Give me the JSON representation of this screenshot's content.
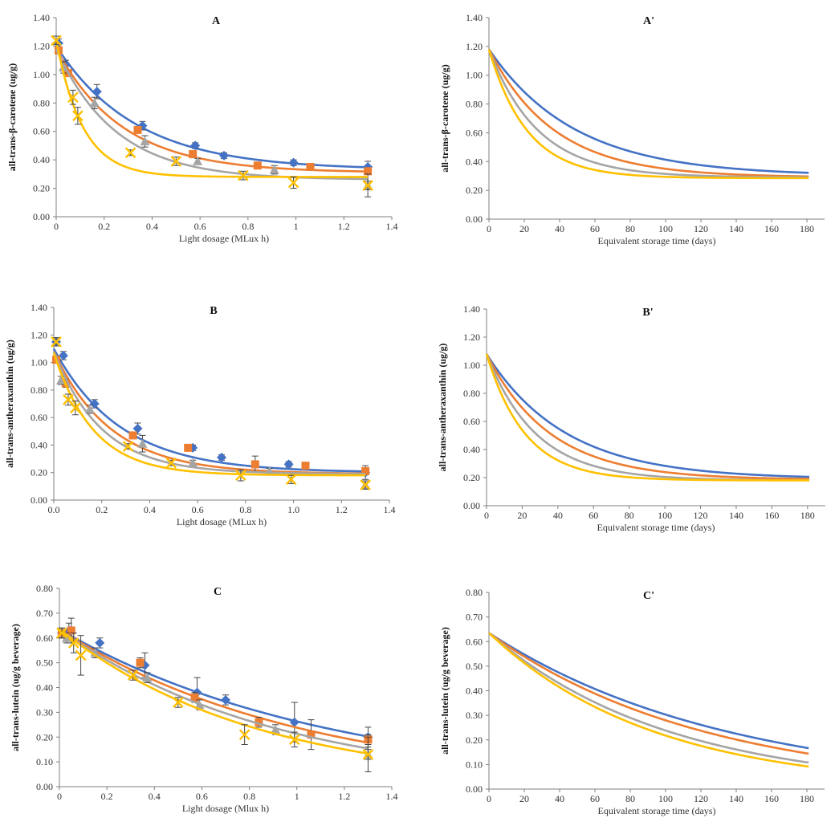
{
  "colors": {
    "blue": "#4472C4",
    "orange": "#ED7D31",
    "gray": "#A5A5A5",
    "yellow": "#FFC000",
    "axis": "#7F7F7F",
    "err": "#444444"
  },
  "chart_data": [
    {
      "id": "A",
      "type": "scatter",
      "title": "A",
      "xlabel": "Light dosage (MLux h)",
      "ylabel": "all-trans-β-carotene (ug/g)",
      "xlim": [
        0,
        1.4
      ],
      "ylim": [
        0,
        1.4
      ],
      "xticks": [
        "0",
        "0.2",
        "0.4",
        "0.6",
        "0.8",
        "1",
        "1.2",
        "1.4"
      ],
      "yticks": [
        "0.00",
        "0.20",
        "0.40",
        "0.60",
        "0.80",
        "1.00",
        "1.20",
        "1.40"
      ],
      "series": [
        {
          "name": "blue",
          "marker": "diamond",
          "x": [
            0.01,
            0.04,
            0.17,
            0.36,
            0.58,
            0.7,
            0.99,
            1.3
          ],
          "y": [
            1.22,
            1.07,
            0.88,
            0.64,
            0.5,
            0.43,
            0.38,
            0.35
          ],
          "err": [
            0.03,
            0.03,
            0.05,
            0.03,
            0.02,
            0.02,
            0.02,
            0.04
          ],
          "fit": {
            "c": 0.33,
            "a": 0.87,
            "k": 3.0
          }
        },
        {
          "name": "orange",
          "marker": "square",
          "x": [
            0.01,
            0.05,
            0.34,
            0.57,
            0.84,
            1.06,
            1.3
          ],
          "y": [
            1.17,
            1.01,
            0.61,
            0.44,
            0.36,
            0.35,
            0.32
          ],
          "err": [
            0.02,
            0.02,
            0.02,
            0.02,
            0.02,
            0.02,
            0.02
          ],
          "fit": {
            "c": 0.31,
            "a": 0.87,
            "k": 3.6
          }
        },
        {
          "name": "gray",
          "marker": "triangle",
          "x": [
            0.03,
            0.16,
            0.37,
            0.59,
            0.91,
            1.3
          ],
          "y": [
            1.05,
            0.8,
            0.53,
            0.39,
            0.33,
            0.22
          ],
          "err": [
            0.04,
            0.04,
            0.04,
            0.02,
            0.03,
            0.08
          ],
          "fit": {
            "c": 0.26,
            "a": 0.92,
            "k": 4.0
          }
        },
        {
          "name": "yellow",
          "marker": "x",
          "x": [
            0.0,
            0.07,
            0.09,
            0.31,
            0.5,
            0.78,
            0.99,
            1.3
          ],
          "y": [
            1.24,
            0.84,
            0.71,
            0.45,
            0.39,
            0.29,
            0.24,
            0.22
          ],
          "err": [
            0.03,
            0.05,
            0.06,
            0.02,
            0.03,
            0.03,
            0.04,
            0.03
          ],
          "fit": {
            "c": 0.28,
            "a": 0.96,
            "k": 9.0
          }
        }
      ]
    },
    {
      "id": "A'",
      "type": "line",
      "title": "A'",
      "xlabel": "Equivalent storage time (days)",
      "ylabel": "all-trans-β-carotene (ug/g)",
      "xlim": [
        0,
        190
      ],
      "ylim": [
        0,
        1.4
      ],
      "xticks": [
        "0",
        "20",
        "40",
        "60",
        "80",
        "100",
        "120",
        "140",
        "160",
        "180"
      ],
      "yticks": [
        "0.00",
        "0.20",
        "0.40",
        "0.60",
        "0.80",
        "1.00",
        "1.20",
        "1.40"
      ],
      "series": [
        {
          "name": "blue",
          "fit": {
            "c": 0.3,
            "a": 0.88,
            "k": 0.0205
          }
        },
        {
          "name": "orange",
          "fit": {
            "c": 0.29,
            "a": 0.89,
            "k": 0.027
          }
        },
        {
          "name": "gray",
          "fit": {
            "c": 0.29,
            "a": 0.89,
            "k": 0.036
          }
        },
        {
          "name": "yellow",
          "fit": {
            "c": 0.285,
            "a": 0.895,
            "k": 0.046
          }
        }
      ]
    },
    {
      "id": "B",
      "type": "scatter",
      "title": "B",
      "xlabel": "Light dosage (MLux h)",
      "ylabel": "all-trans-antheraxanthin (ug/g)",
      "xlim": [
        0,
        1.4
      ],
      "ylim": [
        0,
        1.4
      ],
      "xticks": [
        "0.0",
        "0.2",
        "0.4",
        "0.6",
        "0.8",
        "1.0",
        "1.2",
        "1.4"
      ],
      "yticks": [
        "0.00",
        "0.20",
        "0.40",
        "0.60",
        "0.80",
        "1.00",
        "1.20",
        "1.40"
      ],
      "series": [
        {
          "name": "blue",
          "marker": "diamond",
          "x": [
            0.01,
            0.04,
            0.17,
            0.35,
            0.58,
            0.7,
            0.98,
            1.3
          ],
          "y": [
            1.15,
            1.05,
            0.7,
            0.52,
            0.38,
            0.31,
            0.26,
            0.2
          ],
          "err": [
            0.03,
            0.03,
            0.03,
            0.04,
            0.02,
            0.02,
            0.02,
            0.05
          ],
          "fit": {
            "c": 0.2,
            "a": 0.9,
            "k": 3.6
          }
        },
        {
          "name": "orange",
          "marker": "square",
          "x": [
            0.01,
            0.05,
            0.33,
            0.56,
            0.84,
            1.05,
            1.3
          ],
          "y": [
            1.02,
            0.85,
            0.47,
            0.38,
            0.26,
            0.25,
            0.21
          ],
          "err": [
            0.02,
            0.03,
            0.02,
            0.02,
            0.06,
            0.02,
            0.02
          ],
          "fit": {
            "c": 0.19,
            "a": 0.89,
            "k": 4.2
          }
        },
        {
          "name": "gray",
          "marker": "triangle",
          "x": [
            0.03,
            0.15,
            0.37,
            0.58,
            0.9,
            1.3
          ],
          "y": [
            0.87,
            0.66,
            0.41,
            0.27,
            0.21,
            0.11
          ],
          "err": [
            0.03,
            0.03,
            0.06,
            0.02,
            0.02,
            0.03
          ],
          "fit": {
            "c": 0.19,
            "a": 0.89,
            "k": 5.0
          }
        },
        {
          "name": "yellow",
          "marker": "x",
          "x": [
            0.01,
            0.06,
            0.09,
            0.31,
            0.49,
            0.78,
            0.99,
            1.3
          ],
          "y": [
            1.15,
            0.73,
            0.67,
            0.39,
            0.27,
            0.18,
            0.15,
            0.11
          ],
          "err": [
            0.03,
            0.04,
            0.05,
            0.02,
            0.02,
            0.04,
            0.03,
            0.03
          ],
          "fit": {
            "c": 0.18,
            "a": 0.89,
            "k": 6.0
          }
        }
      ]
    },
    {
      "id": "B'",
      "type": "line",
      "title": "B'",
      "xlabel": "Equivalent storage time (days)",
      "ylabel": "all-trans-antheraxanthin (ug/g)",
      "xlim": [
        0,
        190
      ],
      "ylim": [
        0,
        1.4
      ],
      "xticks": [
        "0",
        "20",
        "40",
        "60",
        "80",
        "100",
        "120",
        "140",
        "160",
        "180"
      ],
      "yticks": [
        "0.00",
        "0.20",
        "0.40",
        "0.60",
        "0.80",
        "1.00",
        "1.20",
        "1.40"
      ],
      "series": [
        {
          "name": "blue",
          "fit": {
            "c": 0.19,
            "a": 0.89,
            "k": 0.0225
          }
        },
        {
          "name": "orange",
          "fit": {
            "c": 0.185,
            "a": 0.895,
            "k": 0.028
          }
        },
        {
          "name": "gray",
          "fit": {
            "c": 0.18,
            "a": 0.9,
            "k": 0.036
          }
        },
        {
          "name": "yellow",
          "fit": {
            "c": 0.18,
            "a": 0.9,
            "k": 0.046
          }
        }
      ]
    },
    {
      "id": "C",
      "type": "scatter",
      "title": "C",
      "xlabel": "Light dosage (Mlux h)",
      "ylabel": "all-trans-lutein (ug/g beverage)",
      "xlim": [
        0,
        1.4
      ],
      "ylim": [
        0,
        0.8
      ],
      "xticks": [
        "0",
        "0.2",
        "0.4",
        "0.6",
        "0.8",
        "1",
        "1.2",
        "1.4"
      ],
      "yticks": [
        "0.00",
        "0.10",
        "0.20",
        "0.30",
        "0.40",
        "0.50",
        "0.60",
        "0.70",
        "0.80"
      ],
      "series": [
        {
          "name": "blue",
          "marker": "diamond",
          "x": [
            0.01,
            0.04,
            0.17,
            0.36,
            0.58,
            0.7,
            0.99,
            1.3
          ],
          "y": [
            0.62,
            0.63,
            0.58,
            0.49,
            0.38,
            0.35,
            0.26,
            0.2
          ],
          "err": [
            0.02,
            0.03,
            0.02,
            0.05,
            0.06,
            0.02,
            0.08,
            0.04
          ],
          "fit": {
            "c": 0.0,
            "a": 0.635,
            "k": 0.88
          }
        },
        {
          "name": "orange",
          "marker": "square",
          "x": [
            0.01,
            0.05,
            0.34,
            0.57,
            0.84,
            1.06,
            1.3
          ],
          "y": [
            0.62,
            0.63,
            0.5,
            0.36,
            0.26,
            0.21,
            0.19
          ],
          "err": [
            0.02,
            0.05,
            0.02,
            0.02,
            0.02,
            0.06,
            0.02
          ],
          "fit": {
            "c": 0.0,
            "a": 0.635,
            "k": 0.98
          }
        },
        {
          "name": "gray",
          "marker": "triangle",
          "x": [
            0.03,
            0.15,
            0.37,
            0.59,
            0.91,
            1.3
          ],
          "y": [
            0.6,
            0.54,
            0.44,
            0.33,
            0.23,
            0.13
          ],
          "err": [
            0.02,
            0.02,
            0.02,
            0.02,
            0.02,
            0.07
          ],
          "fit": {
            "c": 0.0,
            "a": 0.635,
            "k": 1.09
          }
        },
        {
          "name": "yellow",
          "marker": "x",
          "x": [
            0.01,
            0.06,
            0.09,
            0.31,
            0.5,
            0.78,
            0.99,
            1.3
          ],
          "y": [
            0.62,
            0.58,
            0.53,
            0.45,
            0.34,
            0.21,
            0.19,
            0.13
          ],
          "err": [
            0.02,
            0.04,
            0.08,
            0.02,
            0.02,
            0.04,
            0.03,
            0.02
          ],
          "fit": {
            "c": 0.0,
            "a": 0.635,
            "k": 1.2
          }
        }
      ]
    },
    {
      "id": "C'",
      "type": "line",
      "title": "C'",
      "xlabel": "Equivalent storage time (days)",
      "ylabel": "all-trans-lutein (ug/g beverage)",
      "xlim": [
        0,
        190
      ],
      "ylim": [
        0,
        0.8
      ],
      "xticks": [
        "0",
        "20",
        "40",
        "60",
        "80",
        "100",
        "120",
        "140",
        "160",
        "180"
      ],
      "yticks": [
        "0.00",
        "0.10",
        "0.20",
        "0.30",
        "0.40",
        "0.50",
        "0.60",
        "0.70",
        "0.80"
      ],
      "series": [
        {
          "name": "blue",
          "fit": {
            "c": 0.0,
            "a": 0.635,
            "k": 0.0074
          }
        },
        {
          "name": "orange",
          "fit": {
            "c": 0.0,
            "a": 0.635,
            "k": 0.0082
          }
        },
        {
          "name": "gray",
          "fit": {
            "c": 0.0,
            "a": 0.635,
            "k": 0.0098
          }
        },
        {
          "name": "yellow",
          "fit": {
            "c": 0.0,
            "a": 0.635,
            "k": 0.0107
          }
        }
      ]
    }
  ]
}
